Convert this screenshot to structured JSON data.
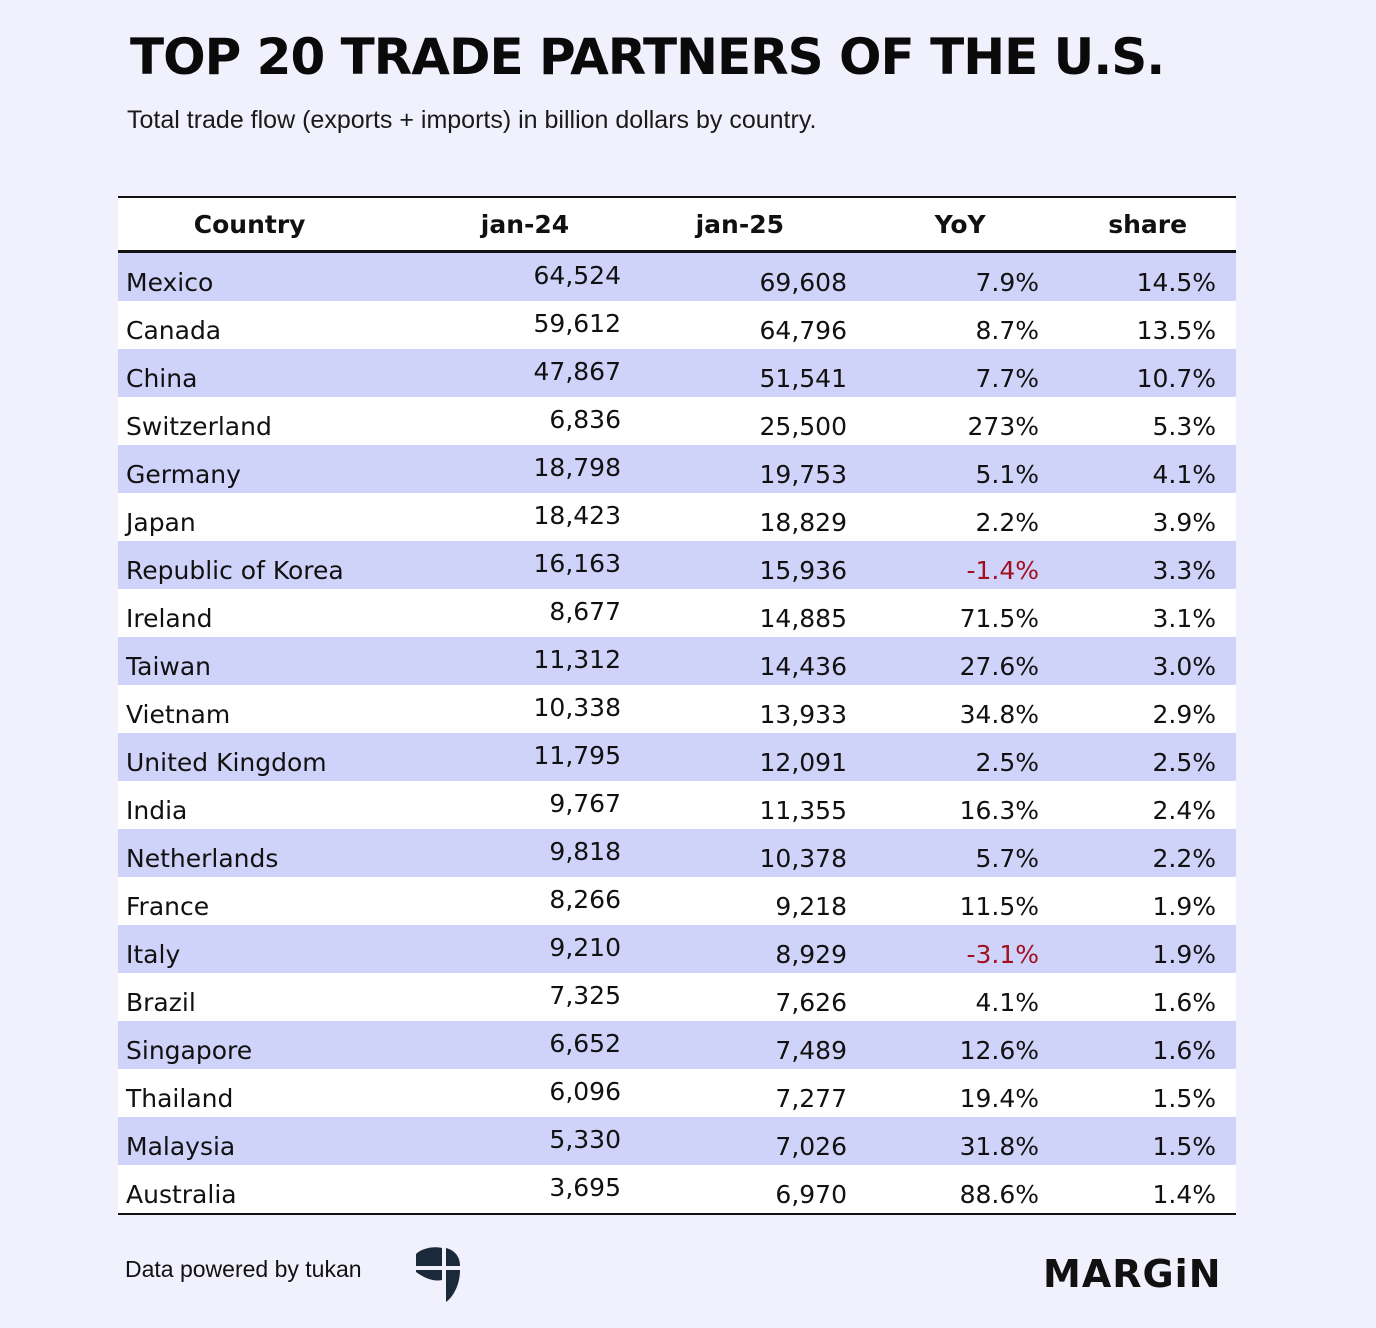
{
  "header": {
    "title": "TOP 20 TRADE PARTNERS OF THE U.S.",
    "subtitle": "Total trade flow (exports + imports) in billion dollars by country."
  },
  "chart_data": {
    "type": "table",
    "columns": [
      "Country",
      "jan-24",
      "jan-25",
      "YoY",
      "share"
    ],
    "rows": [
      {
        "country": "Mexico",
        "jan24": "64,524",
        "jan25": "69,608",
        "yoy": "7.9%",
        "share": "14.5%"
      },
      {
        "country": "Canada",
        "jan24": "59,612",
        "jan25": "64,796",
        "yoy": "8.7%",
        "share": "13.5%"
      },
      {
        "country": "China",
        "jan24": "47,867",
        "jan25": "51,541",
        "yoy": "7.7%",
        "share": "10.7%"
      },
      {
        "country": "Switzerland",
        "jan24": "6,836",
        "jan25": "25,500",
        "yoy": "273%",
        "share": "5.3%"
      },
      {
        "country": "Germany",
        "jan24": "18,798",
        "jan25": "19,753",
        "yoy": "5.1%",
        "share": "4.1%"
      },
      {
        "country": "Japan",
        "jan24": "18,423",
        "jan25": "18,829",
        "yoy": "2.2%",
        "share": "3.9%"
      },
      {
        "country": "Republic of Korea",
        "jan24": "16,163",
        "jan25": "15,936",
        "yoy": "-1.4%",
        "share": "3.3%"
      },
      {
        "country": "Ireland",
        "jan24": "8,677",
        "jan25": "14,885",
        "yoy": "71.5%",
        "share": "3.1%"
      },
      {
        "country": "Taiwan",
        "jan24": "11,312",
        "jan25": "14,436",
        "yoy": "27.6%",
        "share": "3.0%"
      },
      {
        "country": "Vietnam",
        "jan24": "10,338",
        "jan25": "13,933",
        "yoy": "34.8%",
        "share": "2.9%"
      },
      {
        "country": "United Kingdom",
        "jan24": "11,795",
        "jan25": "12,091",
        "yoy": "2.5%",
        "share": "2.5%"
      },
      {
        "country": "India",
        "jan24": "9,767",
        "jan25": "11,355",
        "yoy": "16.3%",
        "share": "2.4%"
      },
      {
        "country": "Netherlands",
        "jan24": "9,818",
        "jan25": "10,378",
        "yoy": "5.7%",
        "share": "2.2%"
      },
      {
        "country": "France",
        "jan24": "8,266",
        "jan25": "9,218",
        "yoy": "11.5%",
        "share": "1.9%"
      },
      {
        "country": "Italy",
        "jan24": "9,210",
        "jan25": "8,929",
        "yoy": "-3.1%",
        "share": "1.9%"
      },
      {
        "country": "Brazil",
        "jan24": "7,325",
        "jan25": "7,626",
        "yoy": "4.1%",
        "share": "1.6%"
      },
      {
        "country": "Singapore",
        "jan24": "6,652",
        "jan25": "7,489",
        "yoy": "12.6%",
        "share": "1.6%"
      },
      {
        "country": "Thailand",
        "jan24": "6,096",
        "jan25": "7,277",
        "yoy": "19.4%",
        "share": "1.5%"
      },
      {
        "country": "Malaysia",
        "jan24": "5,330",
        "jan25": "7,026",
        "yoy": "31.8%",
        "share": "1.5%"
      },
      {
        "country": "Australia",
        "jan24": "3,695",
        "jan25": "6,970",
        "yoy": "88.6%",
        "share": "1.4%"
      }
    ]
  },
  "footer": {
    "credit": "Data powered by tukan",
    "credit_logo": "tukan-logo-icon",
    "brand": "MARGiN"
  },
  "colors": {
    "background": "#f1f1fd",
    "band_row": "#d0d3f9",
    "plain_row": "#ffffff",
    "negative": "#a0101e",
    "logo": "#1b2a3a"
  }
}
